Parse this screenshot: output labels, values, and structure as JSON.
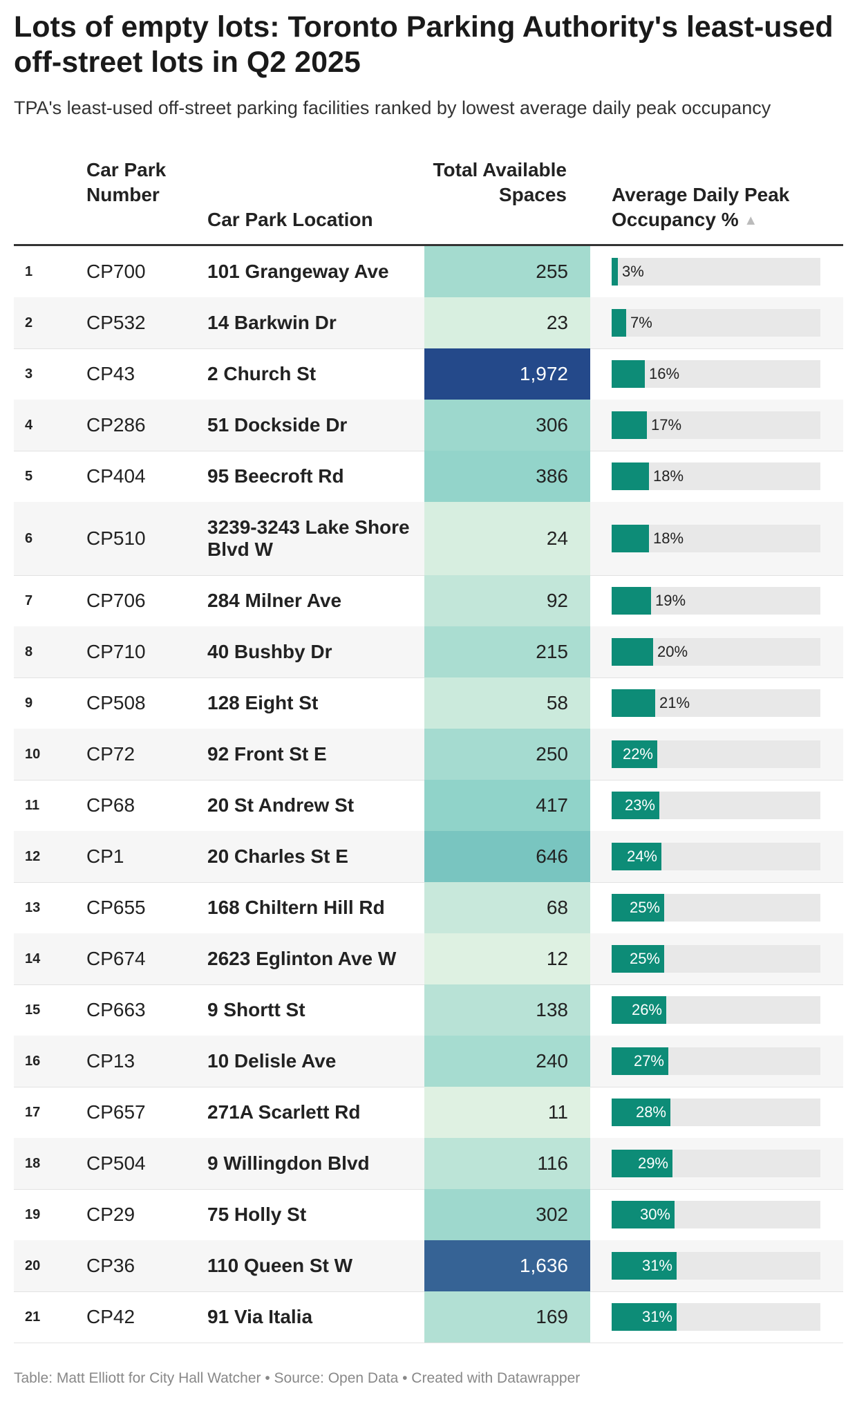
{
  "title": "Lots of empty lots: Toronto Parking Authority's least-used off-street lots in Q2 2025",
  "subtitle": "TPA's least-used off-street parking facilities ranked by lowest average daily peak occupancy",
  "footer": "Table: Matt Elliott for City Hall Watcher • Source: Open Data • Created with Datawrapper",
  "colors": {
    "bar": "#0d8c77",
    "bar_track": "#e8e8e8",
    "heat_low": "#eef7e7",
    "heat_mid": "#7dccc3",
    "heat_high": "#24498a"
  },
  "chart_data": {
    "type": "table",
    "title": "Lots of empty lots: Toronto Parking Authority's least-used off-street lots in Q2 2025",
    "columns": {
      "number": "Car Park Number",
      "location": "Car Park Location",
      "total": "Total Available Spaces",
      "occupancy": "Average Daily Peak Occupancy %",
      "sort_indicator": "▲"
    },
    "occupancy_max_percent": 100,
    "rows": [
      {
        "rank": "1",
        "number": "CP700",
        "location": "101 Grangeway Ave",
        "total": 255,
        "total_label": "255",
        "occupancy": 3,
        "occupancy_label": "3%"
      },
      {
        "rank": "2",
        "number": "CP532",
        "location": "14 Barkwin Dr",
        "total": 23,
        "total_label": "23",
        "occupancy": 7,
        "occupancy_label": "7%"
      },
      {
        "rank": "3",
        "number": "CP43",
        "location": "2 Church St",
        "total": 1972,
        "total_label": "1,972",
        "occupancy": 16,
        "occupancy_label": "16%"
      },
      {
        "rank": "4",
        "number": "CP286",
        "location": "51 Dockside Dr",
        "total": 306,
        "total_label": "306",
        "occupancy": 17,
        "occupancy_label": "17%"
      },
      {
        "rank": "5",
        "number": "CP404",
        "location": "95 Beecroft Rd",
        "total": 386,
        "total_label": "386",
        "occupancy": 18,
        "occupancy_label": "18%"
      },
      {
        "rank": "6",
        "number": "CP510",
        "location": "3239-3243 Lake Shore Blvd W",
        "total": 24,
        "total_label": "24",
        "occupancy": 18,
        "occupancy_label": "18%"
      },
      {
        "rank": "7",
        "number": "CP706",
        "location": "284 Milner Ave",
        "total": 92,
        "total_label": "92",
        "occupancy": 19,
        "occupancy_label": "19%"
      },
      {
        "rank": "8",
        "number": "CP710",
        "location": "40 Bushby Dr",
        "total": 215,
        "total_label": "215",
        "occupancy": 20,
        "occupancy_label": "20%"
      },
      {
        "rank": "9",
        "number": "CP508",
        "location": "128 Eight St",
        "total": 58,
        "total_label": "58",
        "occupancy": 21,
        "occupancy_label": "21%"
      },
      {
        "rank": "10",
        "number": "CP72",
        "location": "92 Front St E",
        "total": 250,
        "total_label": "250",
        "occupancy": 22,
        "occupancy_label": "22%"
      },
      {
        "rank": "11",
        "number": "CP68",
        "location": "20 St Andrew St",
        "total": 417,
        "total_label": "417",
        "occupancy": 23,
        "occupancy_label": "23%"
      },
      {
        "rank": "12",
        "number": "CP1",
        "location": "20 Charles St E",
        "total": 646,
        "total_label": "646",
        "occupancy": 24,
        "occupancy_label": "24%"
      },
      {
        "rank": "13",
        "number": "CP655",
        "location": "168 Chiltern Hill Rd",
        "total": 68,
        "total_label": "68",
        "occupancy": 25,
        "occupancy_label": "25%"
      },
      {
        "rank": "14",
        "number": "CP674",
        "location": "2623 Eglinton Ave W",
        "total": 12,
        "total_label": "12",
        "occupancy": 25,
        "occupancy_label": "25%"
      },
      {
        "rank": "15",
        "number": "CP663",
        "location": "9 Shortt St",
        "total": 138,
        "total_label": "138",
        "occupancy": 26,
        "occupancy_label": "26%"
      },
      {
        "rank": "16",
        "number": "CP13",
        "location": "10 Delisle Ave",
        "total": 240,
        "total_label": "240",
        "occupancy": 27,
        "occupancy_label": "27%"
      },
      {
        "rank": "17",
        "number": "CP657",
        "location": "271A Scarlett Rd",
        "total": 11,
        "total_label": "11",
        "occupancy": 28,
        "occupancy_label": "28%"
      },
      {
        "rank": "18",
        "number": "CP504",
        "location": "9 Willingdon Blvd",
        "total": 116,
        "total_label": "116",
        "occupancy": 29,
        "occupancy_label": "29%"
      },
      {
        "rank": "19",
        "number": "CP29",
        "location": "75 Holly St",
        "total": 302,
        "total_label": "302",
        "occupancy": 30,
        "occupancy_label": "30%"
      },
      {
        "rank": "20",
        "number": "CP36",
        "location": "110 Queen St W",
        "total": 1636,
        "total_label": "1,636",
        "occupancy": 31,
        "occupancy_label": "31%"
      },
      {
        "rank": "21",
        "number": "CP42",
        "location": "91 Via Italia",
        "total": 169,
        "total_label": "169",
        "occupancy": 31,
        "occupancy_label": "31%"
      }
    ]
  }
}
